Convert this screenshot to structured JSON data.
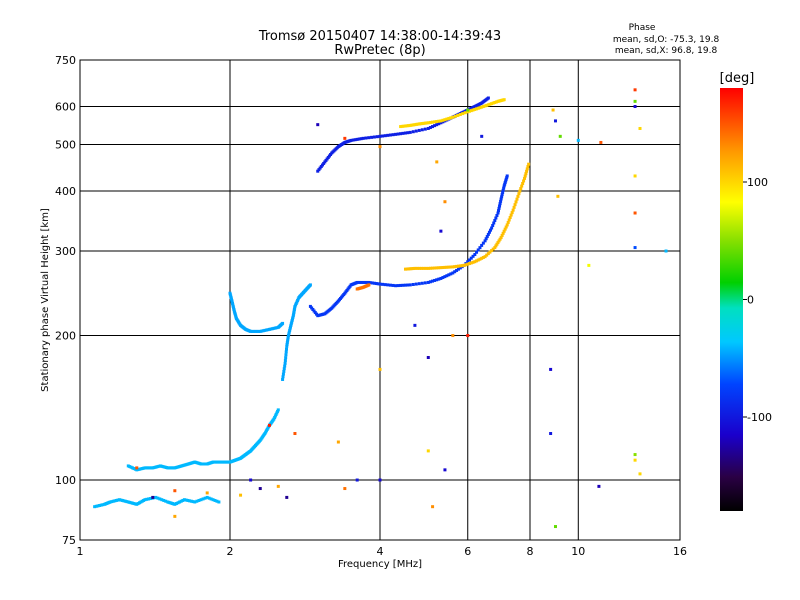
{
  "chart_data": {
    "type": "scatter",
    "title": "Tromsø 20150407 14:38:00-14:39:43",
    "subtitle": "RwPretec (8p)",
    "xlabel": "Frequency [MHz]",
    "ylabel": "Stationary phase Virtual Height [km]",
    "x_scale": "log",
    "y_scale": "log",
    "xlim": [
      1,
      16
    ],
    "ylim": [
      75,
      750
    ],
    "x_ticks": [
      1,
      2,
      4,
      6,
      8,
      10,
      16
    ],
    "y_ticks": [
      75,
      100,
      200,
      300,
      400,
      500,
      600,
      750
    ],
    "grid": true,
    "phase_info": {
      "title": "Phase",
      "line_o": "mean, sd,O: -75.3, 19.8",
      "line_x": "mean, sd,X:  96.8, 19.8"
    },
    "colorbar": {
      "label": "[deg]",
      "min": -180,
      "max": 180,
      "ticks": [
        100,
        0,
        -100
      ]
    },
    "traces": [
      {
        "phase": -40,
        "points": [
          [
            1.07,
            88
          ],
          [
            1.12,
            89
          ],
          [
            1.15,
            90
          ],
          [
            1.2,
            91
          ],
          [
            1.25,
            90
          ],
          [
            1.3,
            89
          ],
          [
            1.35,
            91
          ],
          [
            1.42,
            92
          ],
          [
            1.5,
            90
          ],
          [
            1.55,
            89
          ],
          [
            1.62,
            91
          ],
          [
            1.7,
            90
          ],
          [
            1.8,
            92
          ],
          [
            1.9,
            90
          ]
        ]
      },
      {
        "phase": -40,
        "points": [
          [
            1.25,
            107
          ],
          [
            1.3,
            105
          ],
          [
            1.35,
            106
          ],
          [
            1.4,
            106
          ],
          [
            1.45,
            107
          ],
          [
            1.5,
            106
          ],
          [
            1.55,
            106
          ],
          [
            1.6,
            107
          ],
          [
            1.65,
            108
          ],
          [
            1.7,
            109
          ],
          [
            1.75,
            108
          ],
          [
            1.8,
            108
          ],
          [
            1.85,
            109
          ],
          [
            1.9,
            109
          ],
          [
            1.95,
            109
          ],
          [
            2.0,
            109
          ],
          [
            2.05,
            110
          ],
          [
            2.1,
            111
          ],
          [
            2.15,
            113
          ],
          [
            2.2,
            115
          ],
          [
            2.25,
            118
          ],
          [
            2.3,
            121
          ],
          [
            2.35,
            125
          ],
          [
            2.4,
            130
          ],
          [
            2.45,
            134
          ],
          [
            2.5,
            140
          ]
        ]
      },
      {
        "phase": -45,
        "points": [
          [
            2.0,
            245
          ],
          [
            2.02,
            235
          ],
          [
            2.04,
            225
          ],
          [
            2.06,
            217
          ],
          [
            2.1,
            210
          ],
          [
            2.15,
            206
          ],
          [
            2.2,
            204
          ],
          [
            2.3,
            204
          ],
          [
            2.4,
            206
          ],
          [
            2.5,
            208
          ],
          [
            2.55,
            212
          ]
        ]
      },
      {
        "phase": -45,
        "points": [
          [
            2.55,
            162
          ],
          [
            2.58,
            175
          ],
          [
            2.6,
            190
          ],
          [
            2.62,
            200
          ],
          [
            2.65,
            210
          ],
          [
            2.68,
            220
          ],
          [
            2.7,
            230
          ],
          [
            2.75,
            240
          ],
          [
            2.8,
            245
          ],
          [
            2.85,
            250
          ],
          [
            2.9,
            255
          ]
        ]
      },
      {
        "phase": -80,
        "points": [
          [
            2.9,
            230
          ],
          [
            3.0,
            220
          ],
          [
            3.1,
            222
          ],
          [
            3.2,
            228
          ],
          [
            3.3,
            236
          ],
          [
            3.4,
            245
          ],
          [
            3.5,
            255
          ],
          [
            3.6,
            258
          ],
          [
            3.8,
            258
          ],
          [
            4.0,
            256
          ],
          [
            4.3,
            254
          ],
          [
            4.6,
            255
          ],
          [
            5.0,
            258
          ],
          [
            5.3,
            263
          ],
          [
            5.6,
            270
          ],
          [
            5.9,
            280
          ],
          [
            6.2,
            295
          ],
          [
            6.5,
            315
          ],
          [
            6.7,
            335
          ],
          [
            6.9,
            360
          ],
          [
            7.0,
            385
          ],
          [
            7.1,
            410
          ],
          [
            7.2,
            430
          ]
        ]
      },
      {
        "phase": -95,
        "points": [
          [
            3.0,
            440
          ],
          [
            3.1,
            460
          ],
          [
            3.2,
            480
          ],
          [
            3.3,
            495
          ],
          [
            3.4,
            505
          ],
          [
            3.5,
            510
          ],
          [
            3.7,
            515
          ],
          [
            4.0,
            520
          ],
          [
            4.3,
            525
          ],
          [
            4.6,
            530
          ],
          [
            5.0,
            540
          ],
          [
            5.3,
            555
          ],
          [
            5.6,
            570
          ],
          [
            5.8,
            580
          ],
          [
            6.0,
            590
          ],
          [
            6.2,
            600
          ],
          [
            6.4,
            610
          ],
          [
            6.6,
            625
          ]
        ]
      },
      {
        "phase": 110,
        "points": [
          [
            4.5,
            275
          ],
          [
            4.7,
            276
          ],
          [
            5.0,
            276
          ],
          [
            5.3,
            277
          ],
          [
            5.6,
            278
          ],
          [
            5.9,
            280
          ],
          [
            6.2,
            285
          ],
          [
            6.5,
            292
          ],
          [
            6.8,
            305
          ],
          [
            7.0,
            320
          ],
          [
            7.2,
            340
          ],
          [
            7.4,
            365
          ],
          [
            7.6,
            395
          ],
          [
            7.8,
            425
          ],
          [
            7.95,
            455
          ]
        ]
      },
      {
        "phase": 100,
        "points": [
          [
            4.4,
            545
          ],
          [
            4.6,
            548
          ],
          [
            4.8,
            552
          ],
          [
            5.0,
            555
          ],
          [
            5.3,
            560
          ],
          [
            5.6,
            570
          ],
          [
            6.0,
            585
          ],
          [
            6.3,
            595
          ],
          [
            6.6,
            605
          ],
          [
            6.9,
            615
          ],
          [
            7.1,
            620
          ]
        ]
      },
      {
        "phase": 140,
        "points": [
          [
            3.6,
            250
          ],
          [
            3.7,
            252
          ],
          [
            3.8,
            255
          ]
        ]
      }
    ],
    "outliers": [
      {
        "x": 8.9,
        "y": 590,
        "phase": 110
      },
      {
        "x": 9.0,
        "y": 560,
        "phase": -100
      },
      {
        "x": 9.2,
        "y": 520,
        "phase": 40
      },
      {
        "x": 9.1,
        "y": 390,
        "phase": 110
      },
      {
        "x": 10.5,
        "y": 280,
        "phase": 80
      },
      {
        "x": 10.0,
        "y": 510,
        "phase": -40
      },
      {
        "x": 11.1,
        "y": 505,
        "phase": 150
      },
      {
        "x": 13.0,
        "y": 650,
        "phase": 160
      },
      {
        "x": 13.0,
        "y": 615,
        "phase": 40
      },
      {
        "x": 13.0,
        "y": 600,
        "phase": -110
      },
      {
        "x": 13.3,
        "y": 540,
        "phase": 100
      },
      {
        "x": 13.0,
        "y": 430,
        "phase": 100
      },
      {
        "x": 13.0,
        "y": 360,
        "phase": 150
      },
      {
        "x": 13.0,
        "y": 305,
        "phase": -70
      },
      {
        "x": 15.0,
        "y": 300,
        "phase": -40
      },
      {
        "x": 13.0,
        "y": 110,
        "phase": 100
      },
      {
        "x": 13.0,
        "y": 113,
        "phase": 50
      },
      {
        "x": 13.3,
        "y": 103,
        "phase": 100
      },
      {
        "x": 11.0,
        "y": 97,
        "phase": -120
      },
      {
        "x": 9.0,
        "y": 80,
        "phase": 40
      },
      {
        "x": 8.8,
        "y": 125,
        "phase": -100
      },
      {
        "x": 8.8,
        "y": 170,
        "phase": -110
      },
      {
        "x": 5.2,
        "y": 460,
        "phase": 120
      },
      {
        "x": 5.4,
        "y": 380,
        "phase": 130
      },
      {
        "x": 5.3,
        "y": 330,
        "phase": -110
      },
      {
        "x": 5.6,
        "y": 200,
        "phase": 130
      },
      {
        "x": 5.4,
        "y": 105,
        "phase": -110
      },
      {
        "x": 5.0,
        "y": 180,
        "phase": -120
      },
      {
        "x": 5.0,
        "y": 115,
        "phase": 100
      },
      {
        "x": 5.1,
        "y": 88,
        "phase": 130
      },
      {
        "x": 6.0,
        "y": 200,
        "phase": 170
      },
      {
        "x": 4.0,
        "y": 170,
        "phase": 110
      },
      {
        "x": 3.4,
        "y": 96,
        "phase": 140
      },
      {
        "x": 3.3,
        "y": 120,
        "phase": 120
      },
      {
        "x": 4.0,
        "y": 100,
        "phase": -110
      },
      {
        "x": 3.6,
        "y": 100,
        "phase": -100
      },
      {
        "x": 3.0,
        "y": 550,
        "phase": -120
      },
      {
        "x": 3.4,
        "y": 515,
        "phase": 160
      },
      {
        "x": 4.0,
        "y": 495,
        "phase": 130
      },
      {
        "x": 6.4,
        "y": 520,
        "phase": -100
      },
      {
        "x": 6.0,
        "y": 590,
        "phase": 40
      },
      {
        "x": 4.7,
        "y": 210,
        "phase": -100
      },
      {
        "x": 2.2,
        "y": 100,
        "phase": -110
      },
      {
        "x": 2.3,
        "y": 96,
        "phase": -130
      },
      {
        "x": 2.6,
        "y": 92,
        "phase": -130
      },
      {
        "x": 2.5,
        "y": 97,
        "phase": 120
      },
      {
        "x": 2.1,
        "y": 93,
        "phase": 110
      },
      {
        "x": 1.8,
        "y": 94,
        "phase": 120
      },
      {
        "x": 1.55,
        "y": 95,
        "phase": 150
      },
      {
        "x": 1.55,
        "y": 84,
        "phase": 120
      },
      {
        "x": 1.3,
        "y": 106,
        "phase": 150
      },
      {
        "x": 1.4,
        "y": 92,
        "phase": -130
      },
      {
        "x": 2.7,
        "y": 125,
        "phase": 150
      },
      {
        "x": 2.4,
        "y": 130,
        "phase": 170
      }
    ]
  }
}
